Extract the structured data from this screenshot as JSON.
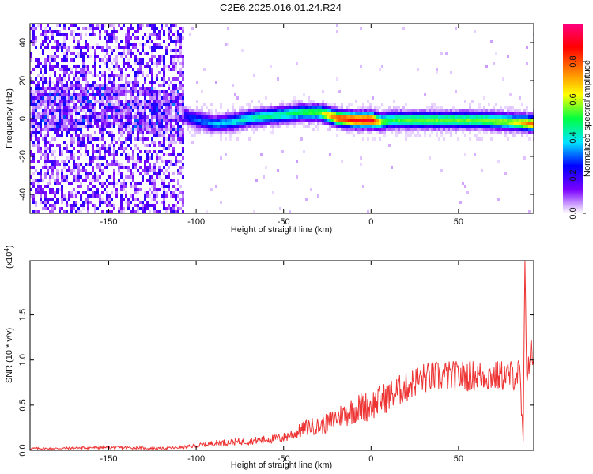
{
  "page": {
    "title": "C2E6.2025.016.01.24.R24"
  },
  "chart_data": [
    {
      "type": "heatmap",
      "title": "C2E6.2025.016.01.24.R24",
      "xlabel": "Height of straight line (km)",
      "ylabel": "Frequency (Hz)",
      "xlim": [
        -195,
        93
      ],
      "ylim": [
        -50,
        50
      ],
      "x_ticks": [
        "-150",
        "-100",
        "-50",
        "0",
        "50"
      ],
      "y_ticks": [
        "-40",
        "-20",
        "0",
        "20",
        "40"
      ],
      "grid": false,
      "colorbar": {
        "label": "Normalized spectral amplitude",
        "range": [
          0,
          1
        ],
        "ticks": [
          "0.0",
          "0.2",
          "0.4",
          "0.6",
          "0.8"
        ],
        "colormap": [
          "#ffffff",
          "#7a00ff",
          "#0000ff",
          "#00e5ff",
          "#00ff40",
          "#ffff00",
          "#ff8000",
          "#ff0000",
          "#ff0080"
        ]
      },
      "ridge": {
        "x": [
          -195,
          -150,
          -110,
          -100,
          -90,
          -80,
          -70,
          -60,
          -50,
          -40,
          -30,
          -20,
          -10,
          0,
          5,
          10,
          20,
          40,
          60,
          80,
          93
        ],
        "y": [
          5,
          8,
          3,
          0,
          -2,
          -1,
          1,
          2,
          3,
          4,
          4,
          1,
          0,
          0,
          -1,
          0,
          0,
          0,
          0,
          -1,
          -2
        ],
        "amplitude": [
          0.15,
          0.18,
          0.2,
          0.3,
          0.35,
          0.4,
          0.42,
          0.45,
          0.45,
          0.5,
          0.55,
          0.8,
          0.9,
          0.92,
          0.6,
          0.5,
          0.55,
          0.55,
          0.55,
          0.6,
          0.8
        ]
      }
    },
    {
      "type": "line",
      "xlabel": "Height of straight line (km)",
      "ylabel": "SNR (10 * v/v)",
      "y_exponent_label": "(x10",
      "y_exponent": "4",
      "xlim": [
        -195,
        93
      ],
      "ylim": [
        0,
        2.1
      ],
      "x_ticks": [
        "-150",
        "-100",
        "-50",
        "0",
        "50"
      ],
      "y_ticks": [
        "0.0",
        "0.5",
        "1.0",
        "1.5"
      ],
      "grid": false,
      "series": [
        {
          "color": "#ee3333",
          "x": [
            -195,
            -180,
            -160,
            -150,
            -140,
            -120,
            -110,
            -100,
            -90,
            -80,
            -70,
            -60,
            -50,
            -45,
            -40,
            -35,
            -30,
            -25,
            -20,
            -15,
            -10,
            -5,
            0,
            5,
            10,
            15,
            20,
            25,
            30,
            40,
            50,
            60,
            70,
            80,
            85,
            86,
            87,
            88,
            89,
            90,
            91,
            93
          ],
          "y": [
            0.02,
            0.02,
            0.03,
            0.03,
            0.03,
            0.02,
            0.03,
            0.05,
            0.08,
            0.09,
            0.1,
            0.12,
            0.14,
            0.18,
            0.22,
            0.27,
            0.26,
            0.3,
            0.36,
            0.4,
            0.45,
            0.48,
            0.5,
            0.55,
            0.6,
            0.65,
            0.7,
            0.76,
            0.8,
            0.82,
            0.82,
            0.83,
            0.82,
            0.83,
            0.85,
            0.45,
            0.1,
            2.0,
            0.9,
            0.95,
            1.1,
            1.0
          ]
        }
      ]
    }
  ]
}
